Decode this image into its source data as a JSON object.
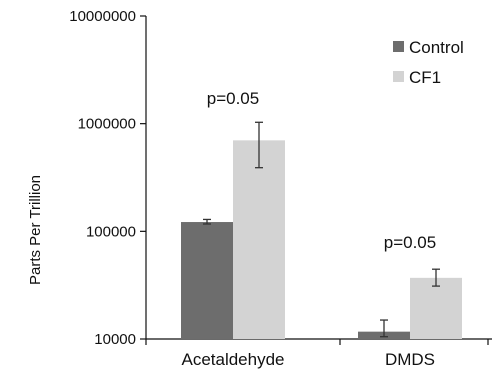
{
  "chart_data": {
    "type": "bar",
    "title": "",
    "xlabel": "",
    "ylabel": "Parts Per Trillion",
    "y_scale": "log",
    "ylim": [
      10000,
      10000000
    ],
    "y_ticks": [
      10000,
      100000,
      1000000,
      10000000
    ],
    "y_tick_labels": [
      "10000",
      "100000",
      "1000000",
      "10000000"
    ],
    "grid": false,
    "legend_position": "top-right",
    "categories": [
      "Acetaldehyde",
      "DMDS"
    ],
    "series": [
      {
        "name": "Control",
        "color": "#6d6d6d",
        "values": [
          122000,
          11700
        ],
        "error_low": [
          117000,
          10500
        ],
        "error_high": [
          129000,
          15000
        ]
      },
      {
        "name": "CF1",
        "color": "#d3d3d3",
        "values": [
          700000,
          37000
        ],
        "error_low": [
          390000,
          31000
        ],
        "error_high": [
          1030000,
          44500
        ]
      }
    ],
    "annotations": [
      {
        "category": "Acetaldehyde",
        "text": "p=0.05"
      },
      {
        "category": "DMDS",
        "text": "p=0.05"
      }
    ]
  }
}
